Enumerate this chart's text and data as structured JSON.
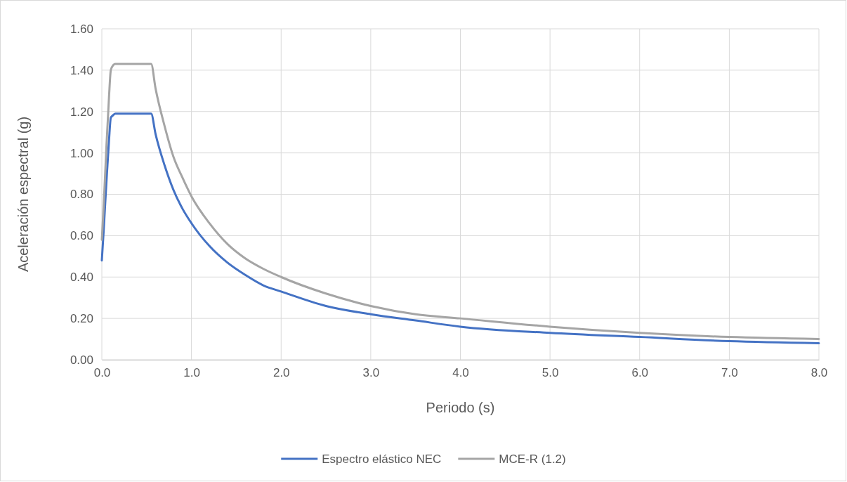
{
  "chart_data": {
    "type": "line",
    "xlabel": "Periodo (s)",
    "ylabel": "Aceleración espectral (g)",
    "x": [
      0,
      0.02,
      0.05,
      0.08,
      0.1,
      0.12,
      0.15,
      0.3,
      0.5,
      0.55,
      0.6,
      0.7,
      0.8,
      0.9,
      1.0,
      1.2,
      1.4,
      1.6,
      1.8,
      2.0,
      2.5,
      3.0,
      3.5,
      4.0,
      5.0,
      6.0,
      7.0,
      8.0
    ],
    "series": [
      {
        "name": "Espectro elástico NEC",
        "color": "#4472c4",
        "values": [
          0.48,
          0.62,
          0.85,
          1.06,
          1.17,
          1.18,
          1.19,
          1.19,
          1.19,
          1.19,
          1.09,
          0.94,
          0.82,
          0.73,
          0.66,
          0.55,
          0.47,
          0.41,
          0.36,
          0.33,
          0.26,
          0.22,
          0.19,
          0.16,
          0.13,
          0.11,
          0.09,
          0.08
        ]
      },
      {
        "name": "MCE-R (1.2)",
        "color": "#a5a5a5",
        "values": [
          0.58,
          0.74,
          1.02,
          1.27,
          1.4,
          1.42,
          1.43,
          1.43,
          1.43,
          1.43,
          1.31,
          1.13,
          0.98,
          0.88,
          0.79,
          0.66,
          0.56,
          0.49,
          0.44,
          0.4,
          0.32,
          0.26,
          0.22,
          0.2,
          0.16,
          0.13,
          0.11,
          0.1
        ]
      }
    ],
    "xlim": [
      0,
      8
    ],
    "xticks": [
      {
        "value": 0,
        "label": "0.0"
      },
      {
        "value": 1,
        "label": "1.0"
      },
      {
        "value": 2,
        "label": "2.0"
      },
      {
        "value": 3,
        "label": "3.0"
      },
      {
        "value": 4,
        "label": "4.0"
      },
      {
        "value": 5,
        "label": "5.0"
      },
      {
        "value": 6,
        "label": "6.0"
      },
      {
        "value": 7,
        "label": "7.0"
      },
      {
        "value": 8,
        "label": "8.0"
      }
    ],
    "ylim": [
      0,
      1.6
    ],
    "yticks": [
      {
        "value": 0,
        "label": "0.00"
      },
      {
        "value": 0.2,
        "label": "0.20"
      },
      {
        "value": 0.4,
        "label": "0.40"
      },
      {
        "value": 0.6,
        "label": "0.60"
      },
      {
        "value": 0.8,
        "label": "0.80"
      },
      {
        "value": 1.0,
        "label": "1.00"
      },
      {
        "value": 1.2,
        "label": "1.20"
      },
      {
        "value": 1.4,
        "label": "1.40"
      },
      {
        "value": 1.6,
        "label": "1.60"
      }
    ],
    "grid": true,
    "legend": "bottom",
    "marker": "none",
    "line_style": "solid"
  }
}
